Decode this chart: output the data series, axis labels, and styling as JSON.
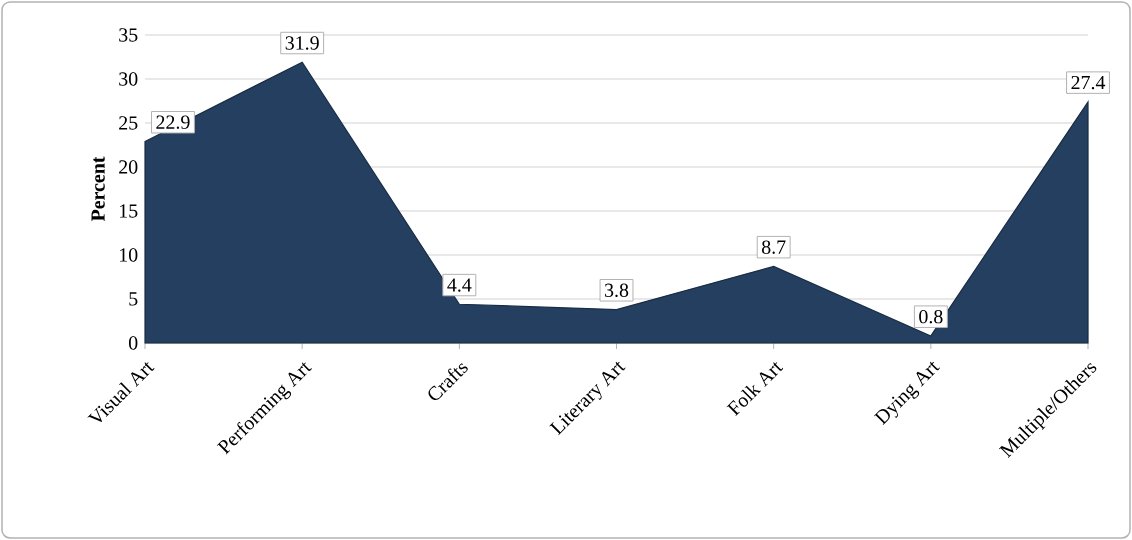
{
  "chart_data": {
    "type": "area",
    "ylabel": "Percent",
    "categories": [
      "Visual Art",
      "Performing Art",
      "Crafts",
      "Literary Art",
      "Folk Art",
      "Dying Art",
      "Multiple/Others"
    ],
    "values": [
      22.9,
      31.9,
      4.4,
      3.8,
      8.7,
      0.8,
      27.4
    ],
    "color": "#243f60",
    "ylim": [
      0,
      35
    ],
    "yticks": [
      0,
      5,
      10,
      15,
      20,
      25,
      30,
      35
    ],
    "grid": "y",
    "data_labels": true
  }
}
